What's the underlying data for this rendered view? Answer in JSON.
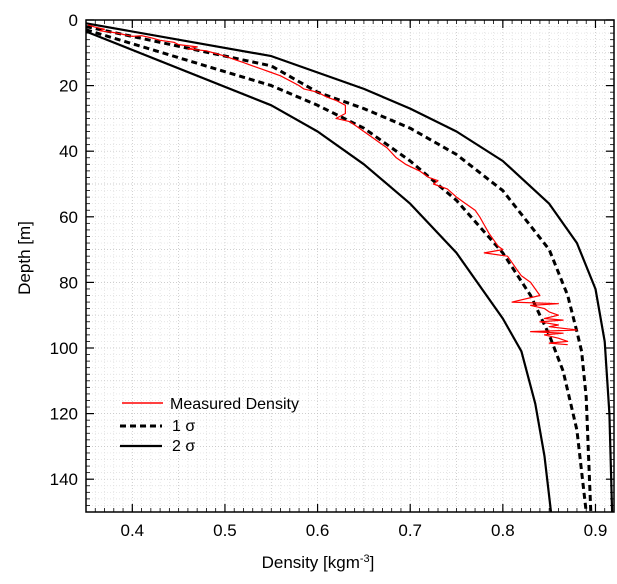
{
  "chart_data": {
    "type": "line",
    "xlabel": "Density [kgm",
    "xlabel_sup": "-3",
    "xlabel_close": "]",
    "ylabel": "Depth [m]",
    "xlim": [
      0.35,
      0.92
    ],
    "ylim": [
      0,
      150
    ],
    "y_inverted": true,
    "x_ticks": [
      "0.4",
      "0.5",
      "0.6",
      "0.7",
      "0.8",
      "0.9"
    ],
    "y_ticks": [
      "0",
      "20",
      "40",
      "60",
      "80",
      "100",
      "120",
      "140"
    ],
    "grid": true,
    "legend_position": "bottom-left",
    "series": [
      {
        "name": "Measured Density",
        "color": "#ff0000",
        "style": "solid",
        "points": [
          [
            0.352,
            1.5
          ],
          [
            0.36,
            2.2
          ],
          [
            0.37,
            2.8
          ],
          [
            0.365,
            3.3
          ],
          [
            0.38,
            3.8
          ],
          [
            0.39,
            4.4
          ],
          [
            0.4,
            5.0
          ],
          [
            0.41,
            4.8
          ],
          [
            0.42,
            5.4
          ],
          [
            0.43,
            6.2
          ],
          [
            0.445,
            6.8
          ],
          [
            0.45,
            7.5
          ],
          [
            0.47,
            8.2
          ],
          [
            0.46,
            8.8
          ],
          [
            0.48,
            9.4
          ],
          [
            0.49,
            10.2
          ],
          [
            0.5,
            11.0
          ],
          [
            0.51,
            12.0
          ],
          [
            0.52,
            13.0
          ],
          [
            0.53,
            14.0
          ],
          [
            0.54,
            15.0
          ],
          [
            0.55,
            16.0
          ],
          [
            0.56,
            17.0
          ],
          [
            0.57,
            18.5
          ],
          [
            0.58,
            20.0
          ],
          [
            0.585,
            21.0
          ],
          [
            0.6,
            22.0
          ],
          [
            0.61,
            23.5
          ],
          [
            0.62,
            24.5
          ],
          [
            0.63,
            26.0
          ],
          [
            0.63,
            28.5
          ],
          [
            0.62,
            30.0
          ],
          [
            0.635,
            31.0
          ],
          [
            0.645,
            33.0
          ],
          [
            0.655,
            35.0
          ],
          [
            0.665,
            37.0
          ],
          [
            0.675,
            39.0
          ],
          [
            0.685,
            42.0
          ],
          [
            0.695,
            44.0
          ],
          [
            0.71,
            46.0
          ],
          [
            0.72,
            48.0
          ],
          [
            0.73,
            49.0
          ],
          [
            0.725,
            50.0
          ],
          [
            0.74,
            51.5
          ],
          [
            0.75,
            54.0
          ],
          [
            0.76,
            56.0
          ],
          [
            0.77,
            58.0
          ],
          [
            0.775,
            60.0
          ],
          [
            0.78,
            62.5
          ],
          [
            0.785,
            65.0
          ],
          [
            0.79,
            67.0
          ],
          [
            0.795,
            69.0
          ],
          [
            0.8,
            70.0
          ],
          [
            0.78,
            71.0
          ],
          [
            0.805,
            72.0
          ],
          [
            0.81,
            74.0
          ],
          [
            0.815,
            76.0
          ],
          [
            0.82,
            78.0
          ],
          [
            0.83,
            80.0
          ],
          [
            0.835,
            82.0
          ],
          [
            0.84,
            84.0
          ],
          [
            0.81,
            86.0
          ],
          [
            0.86,
            86.5
          ],
          [
            0.83,
            87.0
          ],
          [
            0.845,
            88.0
          ],
          [
            0.85,
            89.0
          ],
          [
            0.86,
            90.0
          ],
          [
            0.845,
            91.0
          ],
          [
            0.865,
            91.5
          ],
          [
            0.84,
            92.0
          ],
          [
            0.86,
            93.0
          ],
          [
            0.85,
            93.5
          ],
          [
            0.88,
            94.5
          ],
          [
            0.83,
            95.0
          ],
          [
            0.865,
            95.5
          ],
          [
            0.845,
            96.0
          ],
          [
            0.86,
            97.0
          ],
          [
            0.87,
            98.0
          ],
          [
            0.85,
            98.5
          ],
          [
            0.87,
            99.0
          ]
        ]
      },
      {
        "name": "1 σ",
        "color": "#000000",
        "style": "dashed",
        "points": [
          [
            0.35,
            2.0
          ],
          [
            0.55,
            14.0
          ],
          [
            0.6,
            22.0
          ],
          [
            0.65,
            27.0
          ],
          [
            0.7,
            33.0
          ],
          [
            0.75,
            41.0
          ],
          [
            0.8,
            52.0
          ],
          [
            0.85,
            70.0
          ],
          [
            0.87,
            84.0
          ],
          [
            0.88,
            95.0
          ],
          [
            0.885,
            101.0
          ],
          [
            0.89,
            115.0
          ],
          [
            0.895,
            150.0
          ]
        ]
      },
      {
        "name": "1 σ",
        "color": "#000000",
        "style": "dashed",
        "points": [
          [
            0.35,
            3.0
          ],
          [
            0.55,
            20.0
          ],
          [
            0.6,
            26.0
          ],
          [
            0.65,
            33.0
          ],
          [
            0.7,
            43.0
          ],
          [
            0.75,
            55.0
          ],
          [
            0.8,
            71.0
          ],
          [
            0.83,
            84.0
          ],
          [
            0.85,
            96.0
          ],
          [
            0.865,
            107.0
          ],
          [
            0.88,
            125.0
          ],
          [
            0.89,
            150.0
          ]
        ]
      },
      {
        "name": "2 σ",
        "color": "#000000",
        "style": "solid",
        "points": [
          [
            0.35,
            1.0
          ],
          [
            0.55,
            11.0
          ],
          [
            0.6,
            16.0
          ],
          [
            0.65,
            21.0
          ],
          [
            0.7,
            27.0
          ],
          [
            0.75,
            34.0
          ],
          [
            0.8,
            43.0
          ],
          [
            0.85,
            56.0
          ],
          [
            0.88,
            68.0
          ],
          [
            0.9,
            82.0
          ],
          [
            0.91,
            98.0
          ],
          [
            0.915,
            120.0
          ],
          [
            0.918,
            150.0
          ]
        ]
      },
      {
        "name": "2 σ",
        "color": "#000000",
        "style": "solid",
        "points": [
          [
            0.35,
            3.5
          ],
          [
            0.55,
            26.0
          ],
          [
            0.6,
            34.0
          ],
          [
            0.65,
            44.0
          ],
          [
            0.7,
            56.0
          ],
          [
            0.75,
            71.0
          ],
          [
            0.8,
            91.0
          ],
          [
            0.82,
            101.0
          ],
          [
            0.835,
            117.0
          ],
          [
            0.845,
            133.0
          ],
          [
            0.852,
            150.0
          ]
        ]
      }
    ],
    "legend": [
      {
        "label": "Measured Density",
        "color": "#ff0000",
        "style": "solid"
      },
      {
        "label": "1 σ",
        "color": "#000000",
        "style": "dashed"
      },
      {
        "label": "2 σ",
        "color": "#000000",
        "style": "solid"
      }
    ]
  }
}
